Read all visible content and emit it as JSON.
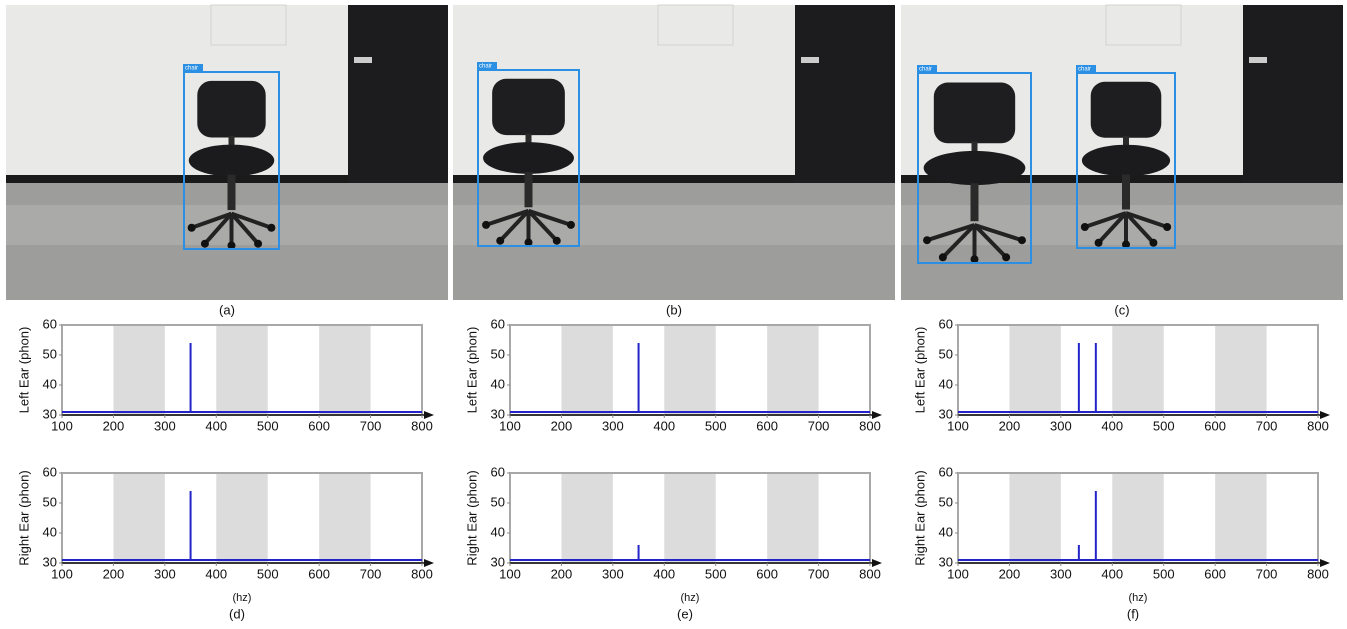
{
  "photos": [
    {
      "caption": "(a)",
      "labels": [
        "chair"
      ]
    },
    {
      "caption": "(b)",
      "labels": [
        "chair"
      ]
    },
    {
      "caption": "(c)",
      "labels": [
        "chair",
        "chair"
      ]
    }
  ],
  "chart_data": [
    {
      "type": "stem",
      "ylabel": "Left Ear (phon)",
      "x": [
        350
      ],
      "values": [
        54
      ],
      "baseline": 31,
      "color": "#2323c8",
      "bands": [
        [
          200,
          300
        ],
        [
          400,
          500
        ],
        [
          600,
          700
        ]
      ],
      "band_color": "#dcdcdc",
      "xlim": [
        100,
        800
      ],
      "xticks": [
        100,
        200,
        300,
        400,
        500,
        600,
        700,
        800
      ],
      "ylim": [
        30,
        60
      ],
      "yticks": [
        30,
        40,
        50,
        60
      ]
    },
    {
      "type": "stem",
      "ylabel": "Left Ear (phon)",
      "x": [
        350
      ],
      "values": [
        54
      ],
      "baseline": 31,
      "color": "#2323c8",
      "bands": [
        [
          200,
          300
        ],
        [
          400,
          500
        ],
        [
          600,
          700
        ]
      ],
      "band_color": "#dcdcdc",
      "xlim": [
        100,
        800
      ],
      "xticks": [
        100,
        200,
        300,
        400,
        500,
        600,
        700,
        800
      ],
      "ylim": [
        30,
        60
      ],
      "yticks": [
        30,
        40,
        50,
        60
      ]
    },
    {
      "type": "stem",
      "ylabel": "Left Ear (phon)",
      "x": [
        335,
        368
      ],
      "values": [
        54,
        54
      ],
      "baseline": 31,
      "color": "#2323c8",
      "bands": [
        [
          200,
          300
        ],
        [
          400,
          500
        ],
        [
          600,
          700
        ]
      ],
      "band_color": "#dcdcdc",
      "xlim": [
        100,
        800
      ],
      "xticks": [
        100,
        200,
        300,
        400,
        500,
        600,
        700,
        800
      ],
      "ylim": [
        30,
        60
      ],
      "yticks": [
        30,
        40,
        50,
        60
      ]
    },
    {
      "type": "stem",
      "ylabel": "Right Ear (phon)",
      "xlabel": "(hz)",
      "caption": "(d)",
      "x": [
        350
      ],
      "values": [
        54
      ],
      "baseline": 31,
      "color": "#2323c8",
      "bands": [
        [
          200,
          300
        ],
        [
          400,
          500
        ],
        [
          600,
          700
        ]
      ],
      "band_color": "#dcdcdc",
      "xlim": [
        100,
        800
      ],
      "xticks": [
        100,
        200,
        300,
        400,
        500,
        600,
        700,
        800
      ],
      "ylim": [
        30,
        60
      ],
      "yticks": [
        30,
        40,
        50,
        60
      ]
    },
    {
      "type": "stem",
      "ylabel": "Right Ear (phon)",
      "xlabel": "(hz)",
      "caption": "(e)",
      "x": [
        350
      ],
      "values": [
        36
      ],
      "baseline": 31,
      "color": "#2323c8",
      "bands": [
        [
          200,
          300
        ],
        [
          400,
          500
        ],
        [
          600,
          700
        ]
      ],
      "band_color": "#dcdcdc",
      "xlim": [
        100,
        800
      ],
      "xticks": [
        100,
        200,
        300,
        400,
        500,
        600,
        700,
        800
      ],
      "ylim": [
        30,
        60
      ],
      "yticks": [
        30,
        40,
        50,
        60
      ]
    },
    {
      "type": "stem",
      "ylabel": "Right Ear (phon)",
      "xlabel": "(hz)",
      "caption": "(f)",
      "x": [
        335,
        368
      ],
      "values": [
        36,
        54
      ],
      "baseline": 31,
      "color": "#2323c8",
      "bands": [
        [
          200,
          300
        ],
        [
          400,
          500
        ],
        [
          600,
          700
        ]
      ],
      "band_color": "#dcdcdc",
      "xlim": [
        100,
        800
      ],
      "xticks": [
        100,
        200,
        300,
        400,
        500,
        600,
        700,
        800
      ],
      "ylim": [
        30,
        60
      ],
      "yticks": [
        30,
        40,
        50,
        60
      ]
    }
  ]
}
